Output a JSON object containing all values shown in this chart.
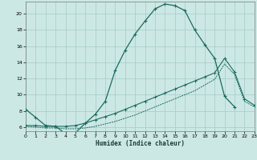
{
  "xlabel": "Humidex (Indice chaleur)",
  "background_color": "#cce8e5",
  "grid_color": "#aacfcc",
  "line_color": "#1a6b5e",
  "xlim": [
    0,
    23
  ],
  "ylim": [
    5.5,
    21.5
  ],
  "xticks": [
    0,
    1,
    2,
    3,
    4,
    5,
    6,
    7,
    8,
    9,
    10,
    11,
    12,
    13,
    14,
    15,
    16,
    17,
    18,
    19,
    20,
    21,
    22,
    23
  ],
  "yticks": [
    6,
    8,
    10,
    12,
    14,
    16,
    18,
    20
  ],
  "curve1_x": [
    0,
    1,
    2,
    3,
    4,
    5,
    6,
    7,
    8,
    9,
    10,
    11,
    12,
    13,
    14,
    15,
    16,
    17,
    18,
    19,
    20,
    21
  ],
  "curve1_y": [
    8.2,
    7.2,
    6.2,
    6.1,
    5.2,
    5.3,
    6.5,
    7.6,
    9.2,
    13.0,
    15.5,
    17.5,
    19.1,
    20.6,
    21.2,
    21.0,
    20.4,
    18.0,
    16.2,
    14.5,
    9.8,
    8.5
  ],
  "curve2_x": [
    0,
    1,
    2,
    3,
    4,
    5,
    6,
    7,
    8,
    9,
    10,
    11,
    12,
    13,
    14,
    15,
    16,
    17,
    18,
    19,
    20,
    21,
    22,
    23
  ],
  "curve2_y": [
    6.2,
    6.2,
    6.1,
    6.1,
    6.1,
    6.2,
    6.5,
    6.9,
    7.3,
    7.7,
    8.2,
    8.7,
    9.2,
    9.7,
    10.2,
    10.7,
    11.2,
    11.7,
    12.2,
    12.7,
    14.5,
    12.8,
    9.5,
    8.7
  ],
  "curve3_x": [
    0,
    1,
    2,
    3,
    4,
    5,
    6,
    7,
    8,
    9,
    10,
    11,
    12,
    13,
    14,
    15,
    16,
    17,
    18,
    19,
    20,
    21,
    22,
    23
  ],
  "curve3_y": [
    6.1,
    6.0,
    5.9,
    5.9,
    5.8,
    5.8,
    5.9,
    6.1,
    6.4,
    6.7,
    7.1,
    7.5,
    8.0,
    8.5,
    9.0,
    9.5,
    10.0,
    10.5,
    11.2,
    11.9,
    13.8,
    12.5,
    9.2,
    8.5
  ]
}
